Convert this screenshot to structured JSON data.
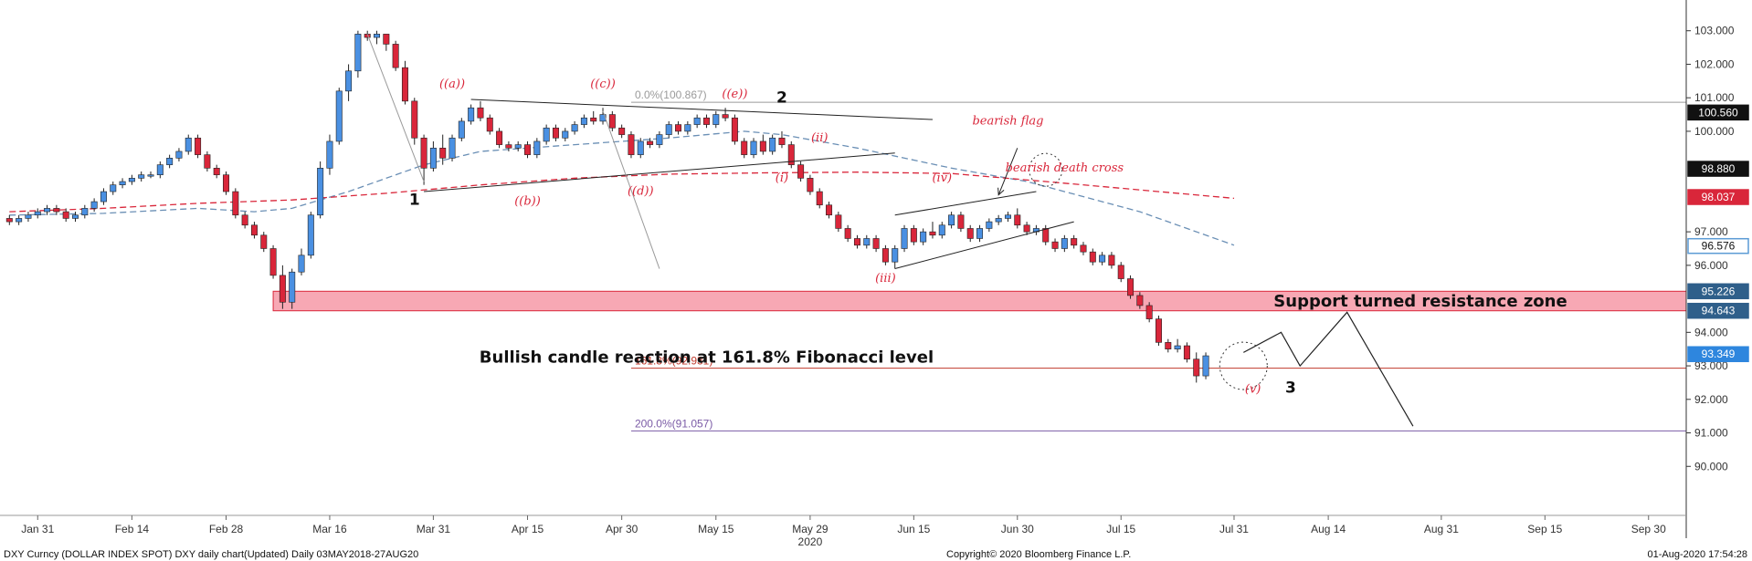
{
  "chart_data": {
    "type": "candlestick",
    "footer": {
      "left": "DXY Curncy (DOLLAR INDEX SPOT) DXY daily chart(Updated)  Daily 03MAY2018-27AUG20",
      "center": "Copyright© 2020 Bloomberg Finance L.P.",
      "right": "01-Aug-2020 17:54:28"
    },
    "ylim": [
      89.0,
      103.7
    ],
    "y_ticks": [
      "90.000",
      "91.000",
      "92.000",
      "93.000",
      "94.000",
      "96.000",
      "97.000",
      "100.000",
      "101.000",
      "102.000",
      "103.000"
    ],
    "x_ticks": [
      {
        "label": "Jan 31",
        "i": 3
      },
      {
        "label": "Feb 14",
        "i": 13
      },
      {
        "label": "Feb 28",
        "i": 23
      },
      {
        "label": "Mar 16",
        "i": 34
      },
      {
        "label": "Mar 31",
        "i": 45
      },
      {
        "label": "Apr 15",
        "i": 55
      },
      {
        "label": "Apr 30",
        "i": 65
      },
      {
        "label": "May 15",
        "i": 75
      },
      {
        "label": "May 29",
        "i": 85
      },
      {
        "label": "Jun 15",
        "i": 96
      },
      {
        "label": "Jun 30",
        "i": 107
      },
      {
        "label": "Jul 15",
        "i": 118
      },
      {
        "label": "Jul 31",
        "i": 130
      },
      {
        "label": "Aug 14",
        "i": 140
      },
      {
        "label": "Aug 31",
        "i": 152
      },
      {
        "label": "Sep 15",
        "i": 163
      },
      {
        "label": "Sep 30",
        "i": 174
      }
    ],
    "x_sublabel": {
      "label": "2020",
      "i": 85
    },
    "x_range": [
      -1,
      178
    ],
    "candles": [
      [
        97.4,
        97.5,
        97.2,
        97.3
      ],
      [
        97.3,
        97.5,
        97.2,
        97.4
      ],
      [
        97.4,
        97.6,
        97.3,
        97.5
      ],
      [
        97.5,
        97.7,
        97.4,
        97.6
      ],
      [
        97.6,
        97.8,
        97.5,
        97.7
      ],
      [
        97.7,
        97.8,
        97.5,
        97.6
      ],
      [
        97.6,
        97.7,
        97.3,
        97.4
      ],
      [
        97.4,
        97.6,
        97.3,
        97.5
      ],
      [
        97.5,
        97.8,
        97.4,
        97.7
      ],
      [
        97.7,
        98.0,
        97.6,
        97.9
      ],
      [
        97.9,
        98.3,
        97.8,
        98.2
      ],
      [
        98.2,
        98.5,
        98.1,
        98.4
      ],
      [
        98.4,
        98.6,
        98.3,
        98.5
      ],
      [
        98.5,
        98.7,
        98.4,
        98.6
      ],
      [
        98.6,
        98.8,
        98.5,
        98.7
      ],
      [
        98.7,
        98.8,
        98.6,
        98.7
      ],
      [
        98.7,
        99.1,
        98.6,
        99.0
      ],
      [
        99.0,
        99.3,
        98.9,
        99.2
      ],
      [
        99.2,
        99.5,
        99.1,
        99.4
      ],
      [
        99.4,
        99.9,
        99.3,
        99.8
      ],
      [
        99.8,
        99.9,
        99.2,
        99.3
      ],
      [
        99.3,
        99.4,
        98.8,
        98.9
      ],
      [
        98.9,
        99.0,
        98.6,
        98.7
      ],
      [
        98.7,
        98.8,
        98.1,
        98.2
      ],
      [
        98.2,
        98.3,
        97.4,
        97.5
      ],
      [
        97.5,
        97.6,
        97.1,
        97.2
      ],
      [
        97.2,
        97.3,
        96.8,
        96.9
      ],
      [
        96.9,
        97.0,
        96.4,
        96.5
      ],
      [
        96.5,
        96.6,
        95.6,
        95.7
      ],
      [
        95.7,
        96.0,
        94.7,
        94.9
      ],
      [
        94.9,
        95.9,
        94.7,
        95.8
      ],
      [
        95.8,
        96.5,
        95.7,
        96.3
      ],
      [
        96.3,
        97.6,
        96.2,
        97.5
      ],
      [
        97.5,
        99.1,
        97.4,
        98.9
      ],
      [
        98.9,
        99.9,
        98.7,
        99.7
      ],
      [
        99.7,
        101.3,
        99.6,
        101.2
      ],
      [
        101.2,
        102.0,
        100.9,
        101.8
      ],
      [
        101.8,
        103.0,
        101.6,
        102.9
      ],
      [
        102.9,
        103.0,
        102.7,
        102.8
      ],
      [
        102.8,
        103.0,
        102.6,
        102.9
      ],
      [
        102.9,
        102.9,
        102.4,
        102.6
      ],
      [
        102.6,
        102.7,
        101.8,
        101.9
      ],
      [
        101.9,
        102.1,
        100.8,
        100.9
      ],
      [
        100.9,
        101.0,
        99.6,
        99.8
      ],
      [
        99.8,
        99.9,
        98.4,
        98.9
      ],
      [
        98.9,
        99.7,
        98.8,
        99.5
      ],
      [
        99.5,
        99.9,
        99.0,
        99.2
      ],
      [
        99.2,
        99.9,
        99.1,
        99.8
      ],
      [
        99.8,
        100.4,
        99.7,
        100.3
      ],
      [
        100.3,
        100.8,
        100.2,
        100.7
      ],
      [
        100.7,
        100.9,
        100.3,
        100.4
      ],
      [
        100.4,
        100.5,
        99.9,
        100.0
      ],
      [
        100.0,
        100.1,
        99.5,
        99.6
      ],
      [
        99.6,
        99.7,
        99.4,
        99.5
      ],
      [
        99.5,
        99.7,
        99.4,
        99.6
      ],
      [
        99.6,
        99.7,
        99.2,
        99.3
      ],
      [
        99.3,
        99.8,
        99.2,
        99.7
      ],
      [
        99.7,
        100.2,
        99.6,
        100.1
      ],
      [
        100.1,
        100.2,
        99.7,
        99.8
      ],
      [
        99.8,
        100.1,
        99.7,
        100.0
      ],
      [
        100.0,
        100.3,
        99.9,
        100.2
      ],
      [
        100.2,
        100.5,
        100.1,
        100.4
      ],
      [
        100.4,
        100.6,
        100.2,
        100.3
      ],
      [
        100.3,
        100.7,
        100.2,
        100.5
      ],
      [
        100.5,
        100.6,
        100.0,
        100.1
      ],
      [
        100.1,
        100.2,
        99.8,
        99.9
      ],
      [
        99.9,
        100.0,
        99.2,
        99.3
      ],
      [
        99.3,
        99.8,
        99.2,
        99.7
      ],
      [
        99.7,
        99.8,
        99.5,
        99.6
      ],
      [
        99.6,
        100.0,
        99.5,
        99.9
      ],
      [
        99.9,
        100.3,
        99.8,
        100.2
      ],
      [
        100.2,
        100.3,
        99.9,
        100.0
      ],
      [
        100.0,
        100.3,
        99.9,
        100.2
      ],
      [
        100.2,
        100.5,
        100.1,
        100.4
      ],
      [
        100.4,
        100.5,
        100.1,
        100.2
      ],
      [
        100.2,
        100.6,
        100.1,
        100.5
      ],
      [
        100.5,
        100.7,
        100.3,
        100.4
      ],
      [
        100.4,
        100.5,
        99.6,
        99.7
      ],
      [
        99.7,
        99.8,
        99.2,
        99.3
      ],
      [
        99.3,
        99.8,
        99.2,
        99.7
      ],
      [
        99.7,
        99.9,
        99.3,
        99.4
      ],
      [
        99.4,
        99.9,
        99.3,
        99.8
      ],
      [
        99.8,
        100.0,
        99.5,
        99.6
      ],
      [
        99.6,
        99.7,
        98.9,
        99.0
      ],
      [
        99.0,
        99.1,
        98.5,
        98.6
      ],
      [
        98.6,
        98.7,
        98.1,
        98.2
      ],
      [
        98.2,
        98.3,
        97.7,
        97.8
      ],
      [
        97.8,
        97.9,
        97.4,
        97.5
      ],
      [
        97.5,
        97.6,
        97.0,
        97.1
      ],
      [
        97.1,
        97.2,
        96.7,
        96.8
      ],
      [
        96.8,
        96.9,
        96.5,
        96.6
      ],
      [
        96.6,
        96.9,
        96.5,
        96.8
      ],
      [
        96.8,
        96.9,
        96.4,
        96.5
      ],
      [
        96.5,
        96.6,
        96.0,
        96.1
      ],
      [
        96.1,
        96.6,
        95.9,
        96.5
      ],
      [
        96.5,
        97.2,
        96.4,
        97.1
      ],
      [
        97.1,
        97.2,
        96.6,
        96.7
      ],
      [
        96.7,
        97.1,
        96.6,
        97.0
      ],
      [
        97.0,
        97.3,
        96.8,
        96.9
      ],
      [
        96.9,
        97.3,
        96.8,
        97.2
      ],
      [
        97.2,
        97.6,
        97.1,
        97.5
      ],
      [
        97.5,
        97.6,
        97.0,
        97.1
      ],
      [
        97.1,
        97.2,
        96.7,
        96.8
      ],
      [
        96.8,
        97.2,
        96.7,
        97.1
      ],
      [
        97.1,
        97.4,
        97.0,
        97.3
      ],
      [
        97.3,
        97.5,
        97.2,
        97.4
      ],
      [
        97.4,
        97.6,
        97.3,
        97.5
      ],
      [
        97.5,
        97.7,
        97.1,
        97.2
      ],
      [
        97.2,
        97.3,
        96.9,
        97.0
      ],
      [
        97.0,
        97.2,
        96.9,
        97.1
      ],
      [
        97.1,
        97.2,
        96.6,
        96.7
      ],
      [
        96.7,
        96.8,
        96.4,
        96.5
      ],
      [
        96.5,
        96.9,
        96.4,
        96.8
      ],
      [
        96.8,
        96.9,
        96.5,
        96.6
      ],
      [
        96.6,
        96.7,
        96.3,
        96.4
      ],
      [
        96.4,
        96.5,
        96.0,
        96.1
      ],
      [
        96.1,
        96.4,
        96.0,
        96.3
      ],
      [
        96.3,
        96.4,
        95.9,
        96.0
      ],
      [
        96.0,
        96.1,
        95.5,
        95.6
      ],
      [
        95.6,
        95.7,
        95.0,
        95.1
      ],
      [
        95.1,
        95.2,
        94.7,
        94.8
      ],
      [
        94.8,
        94.9,
        94.3,
        94.4
      ],
      [
        94.4,
        94.5,
        93.6,
        93.7
      ],
      [
        93.7,
        93.8,
        93.4,
        93.5
      ],
      [
        93.5,
        93.8,
        93.4,
        93.6
      ],
      [
        93.6,
        93.7,
        93.1,
        93.2
      ],
      [
        93.2,
        93.4,
        92.5,
        92.7
      ],
      [
        92.7,
        93.4,
        92.6,
        93.3
      ]
    ],
    "ma_short": [
      [
        0,
        97.5
      ],
      [
        10,
        97.55
      ],
      [
        20,
        97.7
      ],
      [
        26,
        97.6
      ],
      [
        30,
        97.7
      ],
      [
        36,
        98.2
      ],
      [
        44,
        99.0
      ],
      [
        50,
        99.4
      ],
      [
        60,
        99.6
      ],
      [
        70,
        99.8
      ],
      [
        78,
        100.0
      ],
      [
        82,
        99.9
      ],
      [
        90,
        99.5
      ],
      [
        100,
        98.9
      ],
      [
        108,
        98.5
      ],
      [
        120,
        97.6
      ],
      [
        130,
        96.6
      ]
    ],
    "ma_long": [
      [
        0,
        97.6
      ],
      [
        10,
        97.7
      ],
      [
        20,
        97.85
      ],
      [
        30,
        97.95
      ],
      [
        40,
        98.15
      ],
      [
        50,
        98.4
      ],
      [
        60,
        98.6
      ],
      [
        70,
        98.72
      ],
      [
        80,
        98.76
      ],
      [
        90,
        98.78
      ],
      [
        100,
        98.74
      ],
      [
        110,
        98.5
      ],
      [
        120,
        98.25
      ],
      [
        130,
        98.0
      ]
    ],
    "fib_levels": [
      {
        "label": "0.0%(100.867)",
        "value": 100.867,
        "x_from": 66,
        "color": "#9a9a9a"
      },
      {
        "label": "161.8%(92.931)",
        "value": 92.931,
        "x_from": 66,
        "color": "#c0392b"
      },
      {
        "label": "200.0%(91.057)",
        "value": 91.057,
        "x_from": 66,
        "color": "#7b5ba6"
      }
    ],
    "horizontal_line": {
      "value": 100.867,
      "color": "#9a9a9a"
    },
    "support_zone": {
      "from": 94.643,
      "to": 95.226,
      "x_from": 28,
      "label": "Support turned resistance zone"
    },
    "price_tags": [
      {
        "label": "103.000",
        "value": 103.0,
        "style": "tick"
      },
      {
        "label": "100.560",
        "value": 100.56,
        "bg": "#111111",
        "fg": "#ffffff"
      },
      {
        "label": "98.880",
        "value": 98.88,
        "bg": "#111111",
        "fg": "#ffffff"
      },
      {
        "label": "98.037",
        "value": 98.037,
        "bg": "#d9263a",
        "fg": "#ffffff"
      },
      {
        "label": "96.576",
        "value": 96.576,
        "bg": "#5b9bd5",
        "fg": "#ffffff",
        "outline": true
      },
      {
        "label": "95.226",
        "value": 95.226,
        "bg": "#2f5f8a",
        "fg": "#ffffff"
      },
      {
        "label": "94.643",
        "value": 94.643,
        "bg": "#2f5f8a",
        "fg": "#ffffff"
      },
      {
        "label": "93.349",
        "value": 93.349,
        "bg": "#2e86de",
        "fg": "#ffffff"
      }
    ],
    "wave_labels": [
      {
        "text": "((a))",
        "i": 47,
        "y": 101.3,
        "cls": "anno-red"
      },
      {
        "text": "((c))",
        "i": 63,
        "y": 101.3,
        "cls": "anno-red"
      },
      {
        "text": "((e))",
        "i": 77,
        "y": 101.0,
        "cls": "anno-red"
      },
      {
        "text": "((b))",
        "i": 55,
        "y": 97.8,
        "cls": "anno-red"
      },
      {
        "text": "((d))",
        "i": 67,
        "y": 98.1,
        "cls": "anno-red"
      },
      {
        "text": "(i)",
        "i": 82,
        "y": 98.5,
        "cls": "anno-red"
      },
      {
        "text": "(ii)",
        "i": 86,
        "y": 99.7,
        "cls": "anno-red"
      },
      {
        "text": "(iv)",
        "i": 99,
        "y": 98.5,
        "cls": "anno-red"
      },
      {
        "text": "(iii)",
        "i": 93,
        "y": 95.5,
        "cls": "anno-red"
      },
      {
        "text": "(v)",
        "i": 132,
        "y": 92.2,
        "cls": "anno-red"
      },
      {
        "text": "1",
        "i": 43,
        "y": 97.8,
        "cls": "anno-big"
      },
      {
        "text": "2",
        "i": 82,
        "y": 100.85,
        "cls": "anno-big"
      },
      {
        "text": "3",
        "i": 136,
        "y": 92.2,
        "cls": "anno-big"
      }
    ],
    "annotations": [
      {
        "text": "bearish flag",
        "i": 106,
        "y": 100.2,
        "cls": "anno-red"
      },
      {
        "text": "bearish death cross",
        "i": 112,
        "y": 98.8,
        "cls": "anno-red"
      },
      {
        "text": "Bullish candle reaction at 161.8% Fibonacci level",
        "i": 74,
        "y": 93.1,
        "cls": "anno-bold"
      }
    ],
    "trend_lines": [
      {
        "pts": [
          [
            49,
            100.95
          ],
          [
            98,
            100.35
          ]
        ],
        "color": "#222222"
      },
      {
        "pts": [
          [
            44,
            98.2
          ],
          [
            94,
            99.35
          ]
        ],
        "color": "#222222"
      },
      {
        "pts": [
          [
            38,
            102.9
          ],
          [
            44,
            98.5
          ]
        ],
        "color": "#9a9a9a"
      },
      {
        "pts": [
          [
            63,
            100.6
          ],
          [
            69,
            95.9
          ]
        ],
        "color": "#9a9a9a"
      },
      {
        "pts": [
          [
            94,
            97.5
          ],
          [
            109,
            98.2
          ]
        ],
        "color": "#222222"
      },
      {
        "pts": [
          [
            94,
            95.9
          ],
          [
            113,
            97.3
          ]
        ],
        "color": "#222222"
      }
    ],
    "projection_path": [
      [
        131,
        93.4
      ],
      [
        135,
        94.0
      ],
      [
        137,
        93.0
      ],
      [
        142,
        94.6
      ],
      [
        149,
        91.2
      ]
    ],
    "arrow": {
      "from": [
        107,
        99.5
      ],
      "to": [
        105,
        98.1
      ]
    },
    "circles": [
      {
        "i": 110,
        "y": 98.85,
        "rx": 18,
        "ry": 18
      },
      {
        "i": 131,
        "y": 93.0,
        "rx": 26,
        "ry": 26
      }
    ],
    "colors": {
      "up": "#4a90e2",
      "down": "#d9263a",
      "zone": "#f7a8b4",
      "zone_border": "#d9263a",
      "ma_short": "#6a8fb5",
      "ma_long": "#d9263a"
    }
  }
}
